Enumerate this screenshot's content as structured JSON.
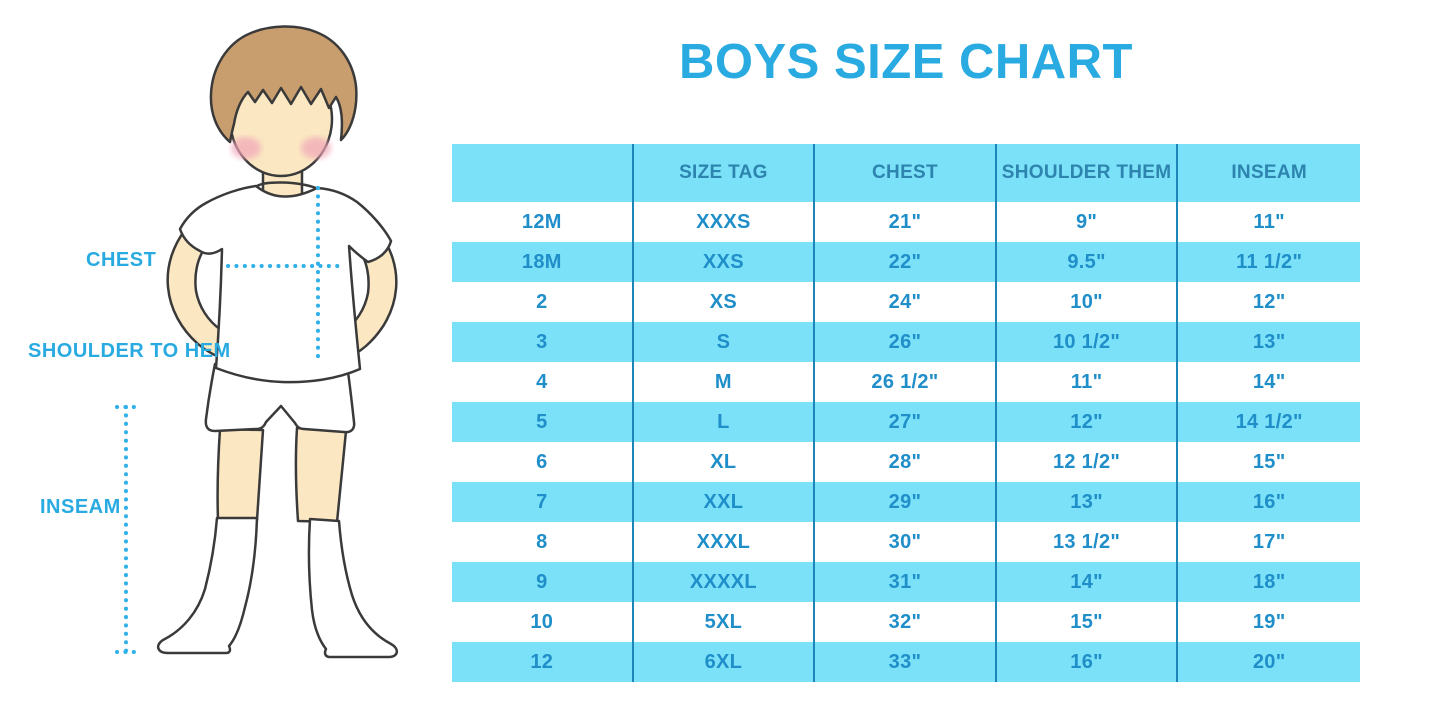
{
  "title": "BOYS SIZE CHART",
  "figure": {
    "labels": {
      "chest": "CHEST",
      "shoulder_to_hem": "SHOULDER TO HEM",
      "inseam": "INSEAM"
    },
    "colors": {
      "label_blue": "#29abe2",
      "dotted_line": "#2fb0e8",
      "hair": "#c89e6e",
      "skin": "#fbe7c2",
      "cheek": "#f1a6b8",
      "garment": "#ffffff",
      "outline": "#3a3a3a"
    }
  },
  "chart_data": {
    "type": "table",
    "title": "BOYS SIZE CHART",
    "columns": [
      "",
      "SIZE TAG",
      "CHEST",
      "SHOULDER THEM",
      "INSEAM"
    ],
    "rows": [
      [
        "12M",
        "XXXS",
        "21\"",
        "9\"",
        "11\""
      ],
      [
        "18M",
        "XXS",
        "22\"",
        "9.5\"",
        "11 1/2\""
      ],
      [
        "2",
        "XS",
        "24\"",
        "10\"",
        "12\""
      ],
      [
        "3",
        "S",
        "26\"",
        "10 1/2\"",
        "13\""
      ],
      [
        "4",
        "M",
        "26 1/2\"",
        "11\"",
        "14\""
      ],
      [
        "5",
        "L",
        "27\"",
        "12\"",
        "14 1/2\""
      ],
      [
        "6",
        "XL",
        "28\"",
        "12 1/2\"",
        "15\""
      ],
      [
        "7",
        "XXL",
        "29\"",
        "13\"",
        "16\""
      ],
      [
        "8",
        "XXXL",
        "30\"",
        "13 1/2\"",
        "17\""
      ],
      [
        "9",
        "XXXXL",
        "31\"",
        "14\"",
        "18\""
      ],
      [
        "10",
        "5XL",
        "32\"",
        "15\"",
        "19\""
      ],
      [
        "12",
        "6XL",
        "33\"",
        "16\"",
        "20\""
      ]
    ],
    "style": {
      "title_color": "#29abe2",
      "header_bg": "#7ae1f8",
      "header_text": "#2d84ae",
      "row_bg": "#ffffff",
      "row_alt_bg": "#7ae1f8",
      "cell_text": "#1f8ec9",
      "divider": "#1d85b7"
    }
  }
}
